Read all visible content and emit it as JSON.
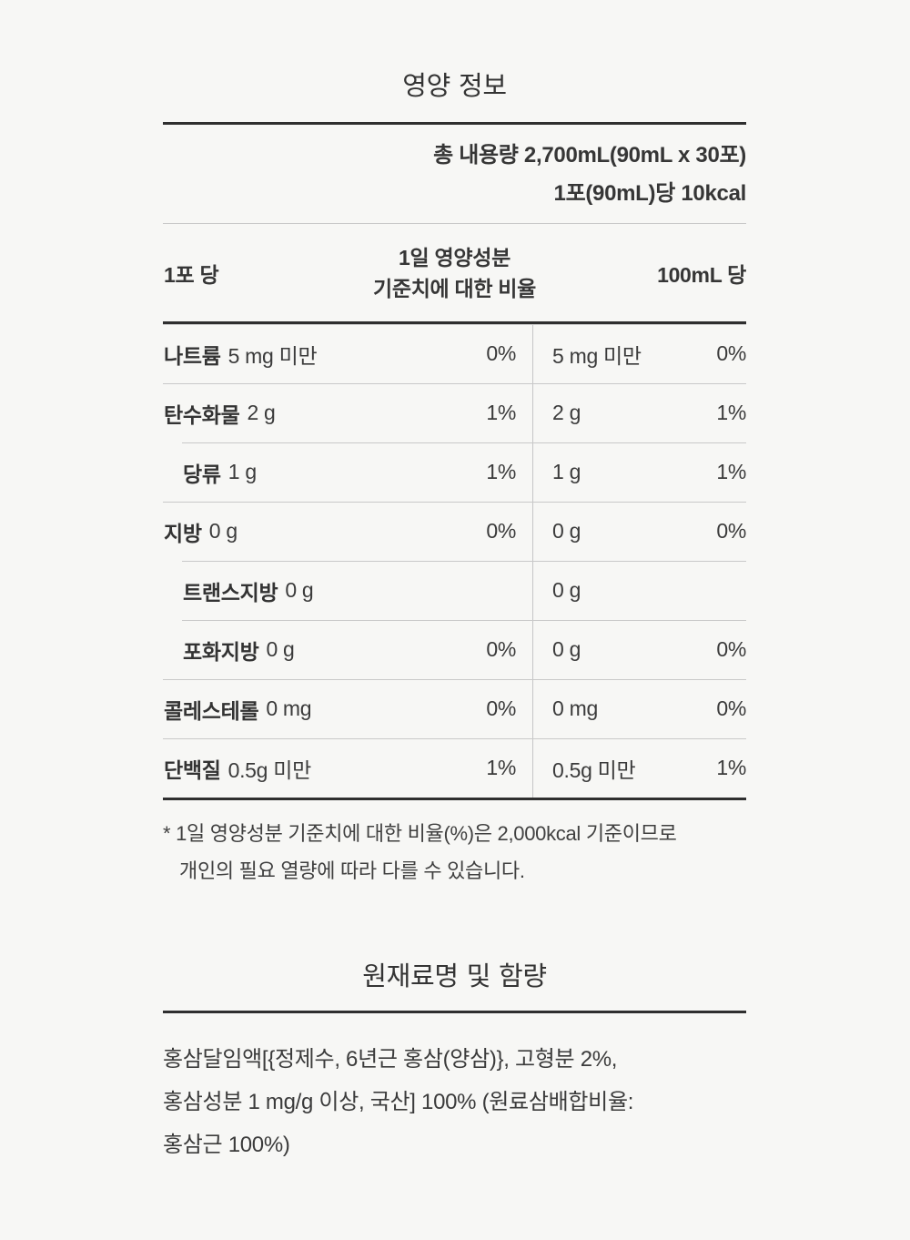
{
  "nutrition": {
    "title": "영양 정보",
    "total_volume": "총 내용량 2,700mL(90mL x 30포)",
    "per_serving_kcal": "1포(90mL)당 10kcal",
    "header": {
      "col_per_pack": "1포 당",
      "col_daily_value_line1": "1일 영양성분",
      "col_daily_value_line2": "기준치에 대한 비율",
      "col_per_100ml": "100mL 당"
    },
    "rows": [
      {
        "name": "나트륨",
        "amount": "5 mg 미만",
        "pct": "0%",
        "amount_100ml": "5 mg 미만",
        "pct_100ml": "0%"
      },
      {
        "name": "탄수화물",
        "amount": "2 g",
        "pct": "1%",
        "amount_100ml": "2 g",
        "pct_100ml": "1%"
      },
      {
        "name": "당류",
        "amount": "1 g",
        "pct": "1%",
        "amount_100ml": "1 g",
        "pct_100ml": "1%"
      },
      {
        "name": "지방",
        "amount": "0 g",
        "pct": "0%",
        "amount_100ml": "0 g",
        "pct_100ml": "0%"
      },
      {
        "name": "트랜스지방",
        "amount": "0 g",
        "pct": "",
        "amount_100ml": "0 g",
        "pct_100ml": ""
      },
      {
        "name": "포화지방",
        "amount": "0 g",
        "pct": "0%",
        "amount_100ml": "0 g",
        "pct_100ml": "0%"
      },
      {
        "name": "콜레스테롤",
        "amount": "0 mg",
        "pct": "0%",
        "amount_100ml": "0 mg",
        "pct_100ml": "0%"
      },
      {
        "name": "단백질",
        "amount": "0.5g 미만",
        "pct": "1%",
        "amount_100ml": "0.5g 미만",
        "pct_100ml": "1%"
      }
    ],
    "footnote_line1": "* 1일 영양성분 기준치에 대한 비율(%)은 2,000kcal 기준이므로",
    "footnote_line2": "개인의 필요 열량에 따라 다를 수 있습니다."
  },
  "ingredients": {
    "title": "원재료명 및 함량",
    "line1": "홍삼달임액[{정제수, 6년근 홍삼(양삼)}, 고형분 2%,",
    "line2": "홍삼성분 1 mg/g 이상, 국산] 100% (원료삼배합비율:",
    "line3": "홍삼근 100%)"
  },
  "colors": {
    "background": "#f7f7f5",
    "text": "#3b3b3b",
    "rule_thick": "#2f2f2f",
    "rule_thin": "#c9c9c9"
  }
}
